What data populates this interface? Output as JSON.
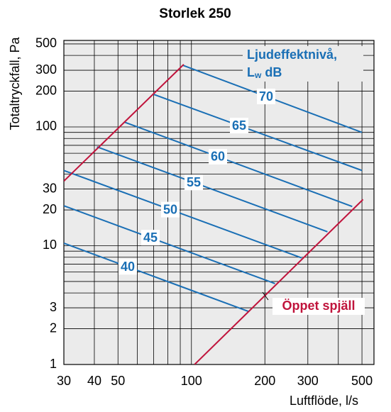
{
  "chart_data": {
    "type": "line",
    "title": "Storlek 250",
    "xlabel": "Luftflöde, l/s",
    "ylabel": "Totaltryckfall, Pa",
    "annotation_lines": [
      "Ljudeffektnivå,",
      [
        "L",
        "w",
        " dB"
      ]
    ],
    "log_x": true,
    "log_y": true,
    "grid": true,
    "xlim": [
      30,
      560
    ],
    "ylim": [
      1,
      535
    ],
    "xticks": [
      30,
      40,
      50,
      100,
      200,
      300,
      500
    ],
    "yticks": [
      1,
      2,
      3,
      10,
      20,
      30,
      100,
      200,
      300,
      500
    ],
    "xgrid": [
      60,
      70,
      80,
      90,
      400
    ],
    "ygrid": [
      4,
      5,
      6,
      7,
      8,
      9,
      40,
      50,
      60,
      70,
      80,
      90,
      400
    ],
    "series": [
      {
        "name": "70",
        "color": "#1a6fb5",
        "x": [
          92,
          500
        ],
        "values": [
          331,
          90
        ]
      },
      {
        "name": "65",
        "color": "#1a6fb5",
        "x": [
          70,
          500
        ],
        "values": [
          188,
          43
        ]
      },
      {
        "name": "60",
        "color": "#1a6fb5",
        "x": [
          53,
          456
        ],
        "values": [
          110,
          21.4
        ]
      },
      {
        "name": "55",
        "color": "#1a6fb5",
        "x": [
          41,
          361
        ],
        "values": [
          68,
          13.1
        ]
      },
      {
        "name": "50",
        "color": "#1a6fb5",
        "x": [
          30,
          283
        ],
        "values": [
          43,
          7.9
        ]
      },
      {
        "name": "45",
        "color": "#1a6fb5",
        "x": [
          30,
          220
        ],
        "values": [
          21.7,
          4.8
        ]
      },
      {
        "name": "40",
        "color": "#1a6fb5",
        "x": [
          30,
          171
        ],
        "values": [
          10.5,
          2.8
        ]
      },
      {
        "color": "#c0143c",
        "x": [
          30,
          93
        ],
        "values": [
          35,
          336
        ]
      },
      {
        "name": "Öppet spjäll",
        "color": "#c0143c",
        "x": [
          103,
          505
        ],
        "values": [
          1,
          24.5
        ]
      }
    ]
  }
}
